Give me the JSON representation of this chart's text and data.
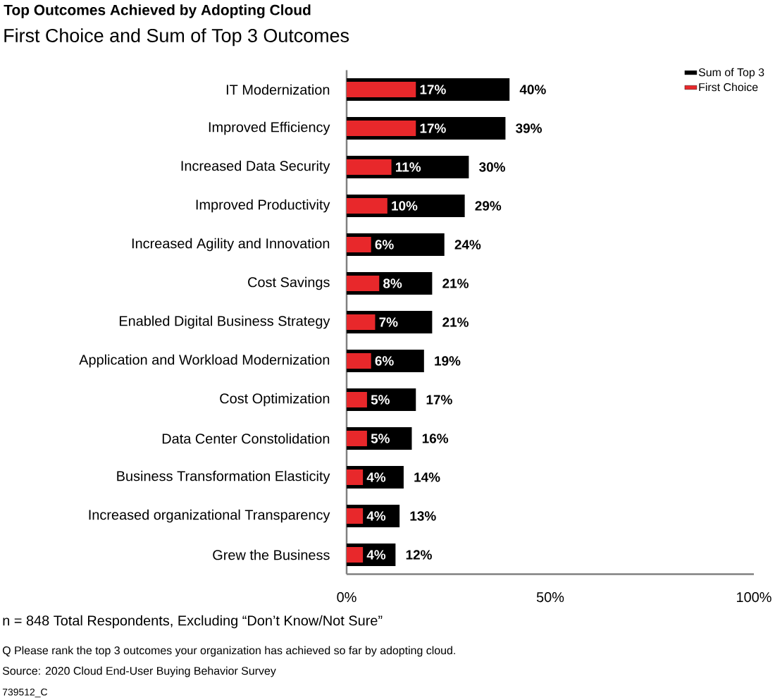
{
  "chart_data": {
    "type": "bar",
    "orientation": "horizontal",
    "title": "Top Outcomes Achieved by Adopting Cloud",
    "subtitle": "First Choice and Sum of Top 3 Outcomes",
    "categories": [
      "IT Modernization",
      "Improved Efficiency",
      "Increased Data Security",
      "Improved Productivity",
      "Increased Agility and Innovation",
      "Cost Savings",
      "Enabled Digital Business Strategy",
      "Application and Workload Modernization",
      "Cost Optimization",
      "Data Center Constolidation",
      "Business Transformation Elasticity",
      "Increased organizational Transparency",
      "Grew the Business"
    ],
    "series": [
      {
        "name": "Sum of Top 3",
        "color": "#000000",
        "values": [
          40,
          39,
          30,
          29,
          24,
          21,
          21,
          19,
          17,
          16,
          14,
          13,
          12
        ],
        "value_labels": [
          "40%",
          "39%",
          "30%",
          "29%",
          "24%",
          "21%",
          "21%",
          "19%",
          "17%",
          "16%",
          "14%",
          "13%",
          "12%"
        ]
      },
      {
        "name": "First Choice",
        "color": "#e8282b",
        "values": [
          17,
          17,
          11,
          10,
          6,
          8,
          7,
          6,
          5,
          5,
          4,
          4,
          4
        ],
        "value_labels": [
          "17%",
          "17%",
          "11%",
          "10%",
          "6%",
          "8%",
          "7%",
          "6%",
          "5%",
          "5%",
          "4%",
          "4%",
          "4%"
        ]
      }
    ],
    "xlim": [
      0,
      100
    ],
    "xticks": [
      {
        "value": 0,
        "label": "0%"
      },
      {
        "value": 50,
        "label": "50%"
      },
      {
        "value": 100,
        "label": "100%"
      }
    ],
    "legend": "top right",
    "annotations": [
      "n = 848 Total Respondents, Excluding “Don’t Know/Not Sure”",
      "Q Please rank the top 3 outcomes your organization has achieved so far by adopting cloud.",
      "Source: 2020 Cloud End-User Buying Behavior Survey",
      "739512_C"
    ]
  }
}
